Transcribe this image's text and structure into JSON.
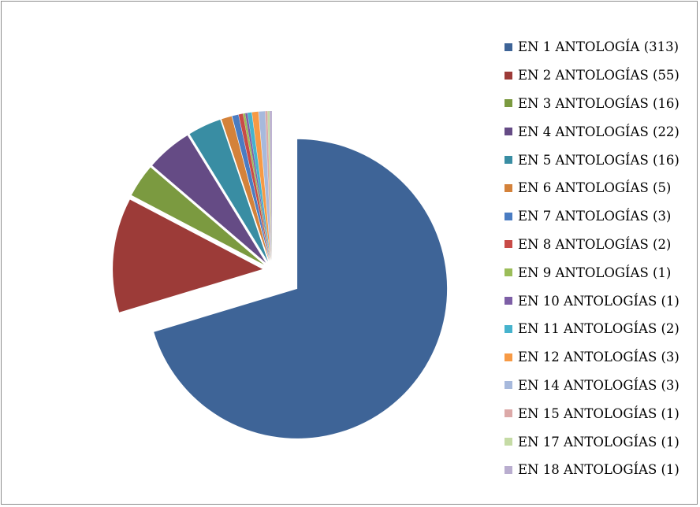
{
  "chart_data": {
    "type": "pie",
    "exploded": true,
    "start": "top",
    "direction": "clockwise",
    "legend_position": "right",
    "slices": [
      {
        "label": "EN 1 ANTOLOGÍA (313)",
        "value": 313,
        "color": "#3E6497"
      },
      {
        "label": "EN 2 ANTOLOGÍAS (55)",
        "value": 55,
        "color": "#9C3B38"
      },
      {
        "label": "EN 3 ANTOLOGÍAS (16)",
        "value": 16,
        "color": "#7B9A40"
      },
      {
        "label": "EN 4 ANTOLOGÍAS (22)",
        "value": 22,
        "color": "#654B85"
      },
      {
        "label": "EN 5 ANTOLOGÍAS (16)",
        "value": 16,
        "color": "#398DA3"
      },
      {
        "label": "EN 6 ANTOLOGÍAS (5)",
        "value": 5,
        "color": "#D4823A"
      },
      {
        "label": "EN 7 ANTOLOGÍAS (3)",
        "value": 3,
        "color": "#4A7CC2"
      },
      {
        "label": "EN 8 ANTOLOGÍAS (2)",
        "value": 2,
        "color": "#C84B47"
      },
      {
        "label": "EN 9 ANTOLOGÍAS (1)",
        "value": 1,
        "color": "#9BBD59"
      },
      {
        "label": "EN 10 ANTOLOGÍAS (1)",
        "value": 1,
        "color": "#7D5FA6"
      },
      {
        "label": "EN 11 ANTOLOGÍAS (2)",
        "value": 2,
        "color": "#46B3CD"
      },
      {
        "label": "EN 12 ANTOLOGÍAS (3)",
        "value": 3,
        "color": "#F79A45"
      },
      {
        "label": "EN 14 ANTOLOGÍAS (3)",
        "value": 3,
        "color": "#A7B9DC"
      },
      {
        "label": "EN 15 ANTOLOGÍAS (1)",
        "value": 1,
        "color": "#DCA9A8"
      },
      {
        "label": "EN 17 ANTOLOGÍAS (1)",
        "value": 1,
        "color": "#C5DBA5"
      },
      {
        "label": "EN 18 ANTOLOGÍAS (1)",
        "value": 1,
        "color": "#B9ADCF"
      }
    ]
  }
}
